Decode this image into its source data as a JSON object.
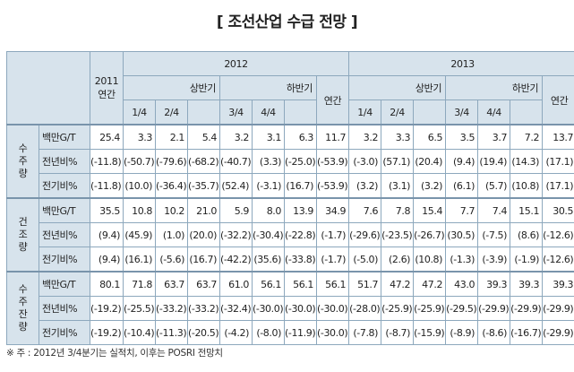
{
  "title": "[ 조선산업 수급 전망 ]",
  "headers": {
    "y2011": [
      "2011",
      "연간"
    ],
    "y2012": "2012",
    "y2013": "2013",
    "h1": "상반기",
    "h2": "하반기",
    "annual": "연간",
    "q1": "1/4",
    "q2": "2/4",
    "q3": "3/4",
    "q4": "4/4"
  },
  "sections": [
    {
      "group": [
        "수",
        "주",
        "량"
      ],
      "rows": [
        {
          "unit": "백만G/T",
          "values": [
            "25.4",
            "3.3",
            "2.1",
            "5.4",
            "3.2",
            "3.1",
            "6.3",
            "11.7",
            "3.2",
            "3.3",
            "6.5",
            "3.5",
            "3.7",
            "7.2",
            "13.7"
          ]
        },
        {
          "unit": "전년비%",
          "values": [
            "(-11.8)",
            "(-50.7)",
            "(-79.6)",
            "(-68.2)",
            "(-40.7)",
            "(3.3)",
            "(-25.0)",
            "(-53.9)",
            "(-3.0)",
            "(57.1)",
            "(20.4)",
            "(9.4)",
            "(19.4)",
            "(14.3)",
            "(17.1)"
          ]
        },
        {
          "unit": "전기비%",
          "values": [
            "(-11.8)",
            "(10.0)",
            "(-36.4)",
            "(-35.7)",
            "(52.4)",
            "(-3.1)",
            "(16.7)",
            "(-53.9)",
            "(3.2)",
            "(3.1)",
            "(3.2)",
            "(6.1)",
            "(5.7)",
            "(10.8)",
            "(17.1)"
          ]
        }
      ]
    },
    {
      "group": [
        "건",
        "조",
        "량"
      ],
      "rows": [
        {
          "unit": "백만G/T",
          "values": [
            "35.5",
            "10.8",
            "10.2",
            "21.0",
            "5.9",
            "8.0",
            "13.9",
            "34.9",
            "7.6",
            "7.8",
            "15.4",
            "7.7",
            "7.4",
            "15.1",
            "30.5"
          ]
        },
        {
          "unit": "전년비%",
          "values": [
            "(9.4)",
            "(45.9)",
            "(1.0)",
            "(20.0)",
            "(-32.2)",
            "(-30.4)",
            "(-22.8)",
            "(-1.7)",
            "(-29.6)",
            "(-23.5)",
            "(-26.7)",
            "(30.5)",
            "(-7.5)",
            "(8.6)",
            "(-12.6)"
          ]
        },
        {
          "unit": "전기비%",
          "values": [
            "(9.4)",
            "(16.1)",
            "(-5.6)",
            "(16.7)",
            "(-42.2)",
            "(35.6)",
            "(-33.8)",
            "(-1.7)",
            "(-5.0)",
            "(2.6)",
            "(10.8)",
            "(-1.3)",
            "(-3.9)",
            "(-1.9)",
            "(-12.6)"
          ]
        }
      ]
    },
    {
      "group": [
        "수",
        "주",
        "잔",
        "량"
      ],
      "rows": [
        {
          "unit": "백만G/T",
          "values": [
            "80.1",
            "71.8",
            "63.7",
            "63.7",
            "61.0",
            "56.1",
            "56.1",
            "56.1",
            "51.7",
            "47.2",
            "47.2",
            "43.0",
            "39.3",
            "39.3",
            "39.3"
          ]
        },
        {
          "unit": "전년비%",
          "values": [
            "(-19.2)",
            "(-25.5)",
            "(-33.2)",
            "(-33.2)",
            "(-32.4)",
            "(-30.0)",
            "(-30.0)",
            "(-30.0)",
            "(-28.0)",
            "(-25.9)",
            "(-25.9)",
            "(-29.5)",
            "(-29.9)",
            "(-29.9)",
            "(-29.9)"
          ]
        },
        {
          "unit": "전기비%",
          "values": [
            "(-19.2)",
            "(-10.4)",
            "(-11.3)",
            "(-20.5)",
            "(-4.2)",
            "(-8.0)",
            "(-11.9)",
            "(-30.0)",
            "(-7.8)",
            "(-8.7)",
            "(-15.9)",
            "(-8.9)",
            "(-8.6)",
            "(-16.7)",
            "(-29.9)"
          ]
        }
      ]
    }
  ],
  "footnote": "※ 주 : 2012년 3/4분기는 실적치, 이후는 POSRI 전망치"
}
